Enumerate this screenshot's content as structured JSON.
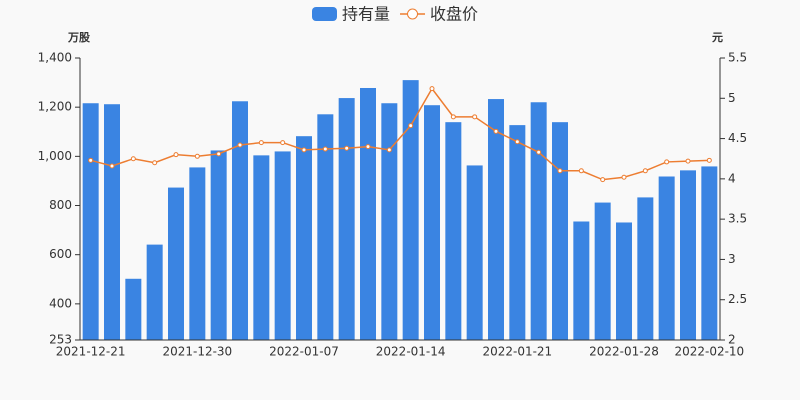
{
  "chart_data": {
    "type": "bar_line",
    "y_label": "万股",
    "y2_label": "元",
    "categories": [
      "2021-12-21",
      null,
      null,
      null,
      null,
      "2021-12-30",
      null,
      null,
      null,
      null,
      "2022-01-07",
      null,
      null,
      null,
      null,
      "2022-01-14",
      null,
      null,
      null,
      null,
      "2022-01-21",
      null,
      null,
      null,
      null,
      "2022-01-28",
      null,
      null,
      null,
      "2022-02-10"
    ],
    "series": [
      {
        "name": "持有量",
        "type": "bar",
        "color": "#3a84e2",
        "values": [
          1216,
          1212,
          502,
          641,
          873,
          955,
          1024,
          1224,
          1004,
          1020,
          1082,
          1171,
          1237,
          1278,
          1216,
          1310,
          1208,
          1139,
          963,
          1233,
          1127,
          1220,
          1139,
          735,
          812,
          731,
          833,
          918,
          943,
          959
        ]
      },
      {
        "name": "收盘价",
        "type": "line",
        "axis": "y2",
        "color": "#ed7d31",
        "values": [
          4.23,
          4.16,
          4.25,
          4.2,
          4.3,
          4.28,
          4.31,
          4.42,
          4.45,
          4.45,
          4.36,
          4.37,
          4.38,
          4.4,
          4.36,
          4.66,
          5.12,
          4.77,
          4.77,
          4.59,
          4.46,
          4.33,
          4.1,
          4.1,
          3.99,
          4.02,
          4.1,
          4.21,
          4.22,
          4.23
        ]
      }
    ],
    "ylim": [
      253,
      1400
    ],
    "yticks": [
      253,
      400,
      600,
      800,
      {
        "value": 1000,
        "label": "1,000"
      },
      {
        "value": 1200,
        "label": "1,200"
      },
      {
        "value": 1400,
        "label": "1,400"
      }
    ],
    "y2lim": [
      2,
      5.5
    ],
    "y2ticks": [
      2,
      2.5,
      3,
      3.5,
      4,
      4.5,
      5,
      5.5
    ],
    "grid": false
  }
}
